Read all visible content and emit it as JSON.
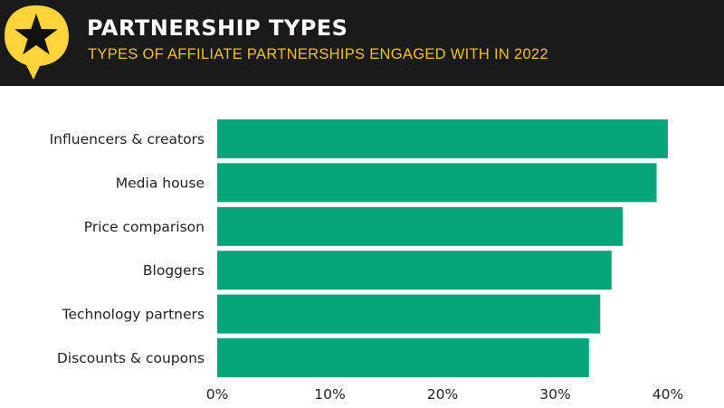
{
  "header": {
    "title": "PARTNERSHIP TYPES",
    "subtitle": "TYPES OF AFFILIATE PARTNERSHIPS ENGAGED WITH IN 2022",
    "logo_icon": "star-speech-bubble-icon"
  },
  "colors": {
    "bar": "#06a67b",
    "header_bg": "#1a1a1a",
    "subtitle": "#f2c300",
    "logo_bubble": "#ffd43b",
    "logo_star": "#111111",
    "text": "#222222"
  },
  "chart_data": {
    "type": "bar",
    "orientation": "horizontal",
    "categories": [
      "Influencers & creators",
      "Media house",
      "Price comparison",
      "Bloggers",
      "Technology partners",
      "Discounts & coupons"
    ],
    "values": [
      40,
      39,
      36,
      35,
      34,
      33
    ],
    "xlim": [
      0,
      40
    ],
    "xticks": [
      0,
      10,
      20,
      30,
      40
    ],
    "xtick_labels": [
      "0%",
      "10%",
      "20%",
      "30%",
      "40%"
    ],
    "grid": false,
    "legend": "none"
  }
}
